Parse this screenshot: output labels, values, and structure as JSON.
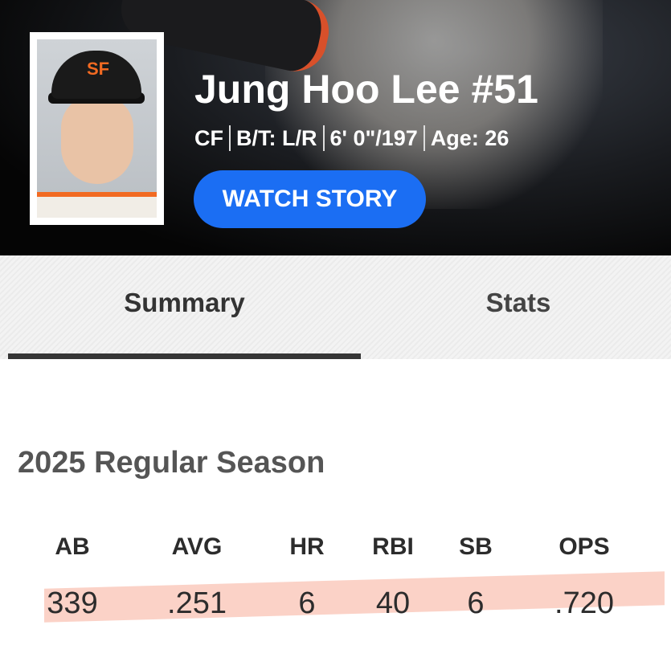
{
  "player": {
    "name": "Jung Hoo Lee #51",
    "position": "CF",
    "bt": "B/T: L/R",
    "size": "6' 0\"/197",
    "age": "Age: 26",
    "cap_logo": "SF"
  },
  "watch_label": "WATCH STORY",
  "tabs": [
    {
      "label": "Summary",
      "active": true
    },
    {
      "label": "Stats",
      "active": false
    }
  ],
  "season_title": "2025 Regular Season",
  "stats": {
    "headers": [
      "AB",
      "AVG",
      "HR",
      "RBI",
      "SB",
      "OPS"
    ],
    "values": [
      "339",
      ".251",
      "6",
      "40",
      "6",
      ".720"
    ]
  },
  "colors": {
    "accent": "#1b6ef3",
    "highlight": "#fbd0c4"
  }
}
